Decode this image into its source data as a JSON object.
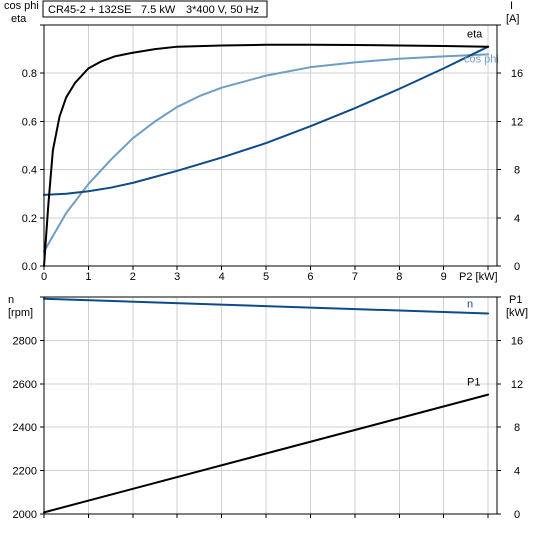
{
  "header": {
    "model": "CR45-2 + 132SE",
    "power": "7.5 kW",
    "supply": "3*400 V, 50 Hz"
  },
  "colors": {
    "eta": "#000000",
    "cos_phi": "#6e9ec6",
    "current": "#0e4a8a",
    "speed": "#0e4a8a",
    "p1": "#000000",
    "grid": "#d2d2d2"
  },
  "chart_data": [
    {
      "type": "line",
      "panel": "top",
      "left_axis_label": [
        "cos phi",
        "eta"
      ],
      "right_axis_label": [
        "I",
        "[A]"
      ],
      "xlabel": "P2 [kW]",
      "xlim": [
        0,
        10.2
      ],
      "x_ticks": [
        "0",
        "1",
        "2",
        "3",
        "4",
        "5",
        "6",
        "7",
        "8",
        "9"
      ],
      "left_ylim": [
        0,
        1
      ],
      "left_ticks": [
        "0.0",
        "0.2",
        "0.4",
        "0.6",
        "0.8"
      ],
      "right_ylim": [
        0,
        20
      ],
      "right_ticks": [
        "0",
        "4",
        "8",
        "12",
        "16"
      ],
      "grid": true,
      "series": [
        {
          "name": "eta",
          "axis": "left",
          "x": [
            0.0,
            0.1,
            0.2,
            0.35,
            0.5,
            0.7,
            1.0,
            1.3,
            1.6,
            2.0,
            2.5,
            3.0,
            4.0,
            5.0,
            6.0,
            7.0,
            8.0,
            9.0,
            10.0
          ],
          "y": [
            0.0,
            0.26,
            0.48,
            0.62,
            0.7,
            0.76,
            0.82,
            0.85,
            0.87,
            0.885,
            0.9,
            0.91,
            0.915,
            0.918,
            0.918,
            0.917,
            0.915,
            0.913,
            0.91
          ]
        },
        {
          "name": "cos phi",
          "axis": "left",
          "x": [
            0.0,
            0.25,
            0.5,
            1.0,
            1.5,
            2.0,
            2.5,
            3.0,
            3.5,
            4.0,
            5.0,
            6.0,
            7.0,
            8.0,
            9.0,
            10.0
          ],
          "y": [
            0.06,
            0.14,
            0.22,
            0.34,
            0.44,
            0.53,
            0.6,
            0.66,
            0.705,
            0.74,
            0.79,
            0.825,
            0.845,
            0.86,
            0.87,
            0.878
          ]
        },
        {
          "name": "I",
          "axis": "right",
          "x": [
            0.0,
            0.5,
            1.0,
            1.5,
            2.0,
            3.0,
            4.0,
            5.0,
            6.0,
            7.0,
            8.0,
            9.0,
            10.0
          ],
          "y": [
            5.9,
            6.0,
            6.2,
            6.5,
            6.9,
            7.9,
            9.0,
            10.2,
            11.6,
            13.1,
            14.7,
            16.4,
            18.2
          ]
        }
      ]
    },
    {
      "type": "line",
      "panel": "bottom",
      "left_axis_label": [
        "n",
        "[rpm]"
      ],
      "right_axis_label": [
        "P1",
        "[kW]"
      ],
      "xlim": [
        0,
        10.2
      ],
      "left_ylim": [
        2000,
        3000
      ],
      "left_ticks": [
        "2000",
        "2200",
        "2400",
        "2600",
        "2800"
      ],
      "right_ylim": [
        0,
        20
      ],
      "right_ticks": [
        "0",
        "4",
        "8",
        "12",
        "16"
      ],
      "grid": true,
      "series": [
        {
          "name": "n",
          "axis": "left",
          "x": [
            0.0,
            10.0
          ],
          "y": [
            2992,
            2924
          ]
        },
        {
          "name": "P1",
          "axis": "right",
          "x": [
            0.0,
            10.0
          ],
          "y": [
            0.15,
            11.0
          ]
        }
      ]
    }
  ]
}
